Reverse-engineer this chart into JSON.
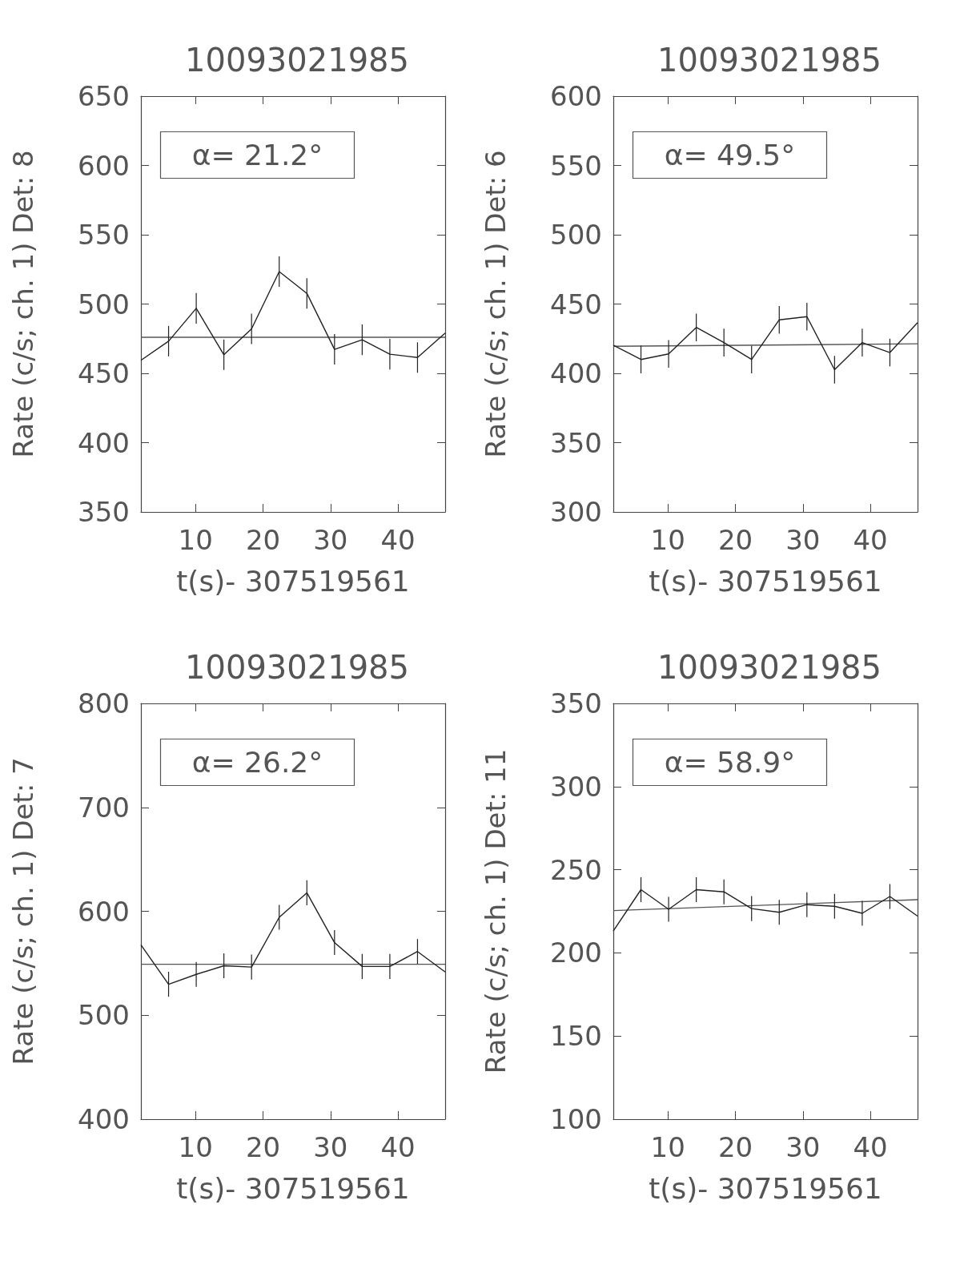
{
  "chart_data": [
    {
      "type": "line",
      "title": "10093021985",
      "xlabel": "t(s)- 307519561",
      "ylabel": "Rate (c/s; ch. 1) Det: 8",
      "annotations": [
        "α= 21.2°"
      ],
      "xlim": [
        1.9,
        47.0
      ],
      "xticks": [
        10,
        20,
        30,
        40
      ],
      "ylim": [
        350,
        650
      ],
      "yticks": [
        350,
        400,
        450,
        500,
        550,
        600,
        650
      ],
      "series": [
        {
          "color": "#222222",
          "x": [
            1.9,
            6.0,
            10.1,
            14.2,
            18.3,
            22.4,
            26.5,
            30.6,
            34.7,
            38.8,
            42.9,
            47.0
          ],
          "values": [
            459.4,
            473.2,
            496.9,
            463.4,
            482.1,
            523.4,
            507.7,
            467.3,
            474.2,
            463.8,
            461.4,
            479.1
          ],
          "errors": [
            null,
            11,
            11,
            11,
            11,
            11,
            11,
            11,
            11,
            11,
            11,
            null
          ]
        },
        {
          "color": "#555555",
          "x": [
            1.9,
            47.0
          ],
          "values": [
            476,
            476
          ]
        }
      ]
    },
    {
      "type": "line",
      "title": "10093021985",
      "xlabel": "t(s)- 307519561",
      "ylabel": "Rate (c/s; ch. 1) Det: 6",
      "annotations": [
        "α= 49.5°"
      ],
      "xlim": [
        1.9,
        47.0
      ],
      "xticks": [
        10,
        20,
        30,
        40
      ],
      "ylim": [
        300,
        600
      ],
      "yticks": [
        300,
        350,
        400,
        450,
        500,
        550,
        600
      ],
      "series": [
        {
          "color": "#222222",
          "x": [
            1.9,
            6.0,
            10.1,
            14.2,
            18.3,
            22.4,
            26.5,
            30.6,
            34.7,
            38.8,
            42.9,
            47.0
          ],
          "values": [
            420.3,
            410.0,
            414.0,
            433.1,
            422.2,
            410.0,
            438.6,
            440.9,
            402.6,
            422.2,
            415.0,
            436.6
          ],
          "errors": [
            null,
            10,
            10,
            10,
            10,
            10,
            10,
            10,
            10,
            10,
            10,
            null
          ]
        },
        {
          "color": "#555555",
          "x": [
            1.9,
            47.0
          ],
          "values": [
            419.5,
            421.3
          ]
        }
      ]
    },
    {
      "type": "line",
      "title": "10093021985",
      "xlabel": "t(s)- 307519561",
      "ylabel": "Rate (c/s; ch. 1) Det: 7",
      "annotations": [
        "α= 26.2°"
      ],
      "xlim": [
        1.9,
        47.0
      ],
      "xticks": [
        10,
        20,
        30,
        40
      ],
      "ylim": [
        400,
        800
      ],
      "yticks": [
        400,
        500,
        600,
        700,
        800
      ],
      "series": [
        {
          "color": "#222222",
          "x": [
            1.9,
            6.0,
            10.1,
            14.2,
            18.3,
            22.4,
            26.5,
            30.6,
            34.7,
            38.8,
            42.9,
            47.0
          ],
          "values": [
            567.8,
            529.8,
            539.3,
            547.6,
            546.3,
            594.2,
            617.8,
            569.9,
            546.9,
            546.9,
            561.3,
            541.6
          ],
          "errors": [
            null,
            12,
            12,
            12,
            12,
            12,
            12,
            12,
            12,
            12,
            12,
            null
          ]
        },
        {
          "color": "#555555",
          "x": [
            1.9,
            47.0
          ],
          "values": [
            549,
            549
          ]
        }
      ]
    },
    {
      "type": "line",
      "title": "10093021985",
      "xlabel": "t(s)- 307519561",
      "ylabel": "Rate (c/s; ch. 1) Det: 11",
      "annotations": [
        "α= 58.9°"
      ],
      "xlim": [
        1.9,
        47.0
      ],
      "xticks": [
        10,
        20,
        30,
        40
      ],
      "ylim": [
        100,
        350
      ],
      "yticks": [
        100,
        150,
        200,
        250,
        300,
        350
      ],
      "series": [
        {
          "color": "#222222",
          "x": [
            1.9,
            6.0,
            10.1,
            14.2,
            18.3,
            22.4,
            26.5,
            30.6,
            34.7,
            38.8,
            42.9,
            47.0
          ],
          "values": [
            213.1,
            238.0,
            226.2,
            238.0,
            236.7,
            226.6,
            224.4,
            229.0,
            228.0,
            223.8,
            233.9,
            222.1
          ],
          "errors": [
            null,
            7.5,
            7.5,
            7.5,
            7.5,
            7.5,
            7.5,
            7.5,
            7.5,
            7.5,
            7.5,
            null
          ]
        },
        {
          "color": "#555555",
          "x": [
            1.9,
            47.0
          ],
          "values": [
            225.4,
            232.0
          ]
        }
      ]
    }
  ]
}
